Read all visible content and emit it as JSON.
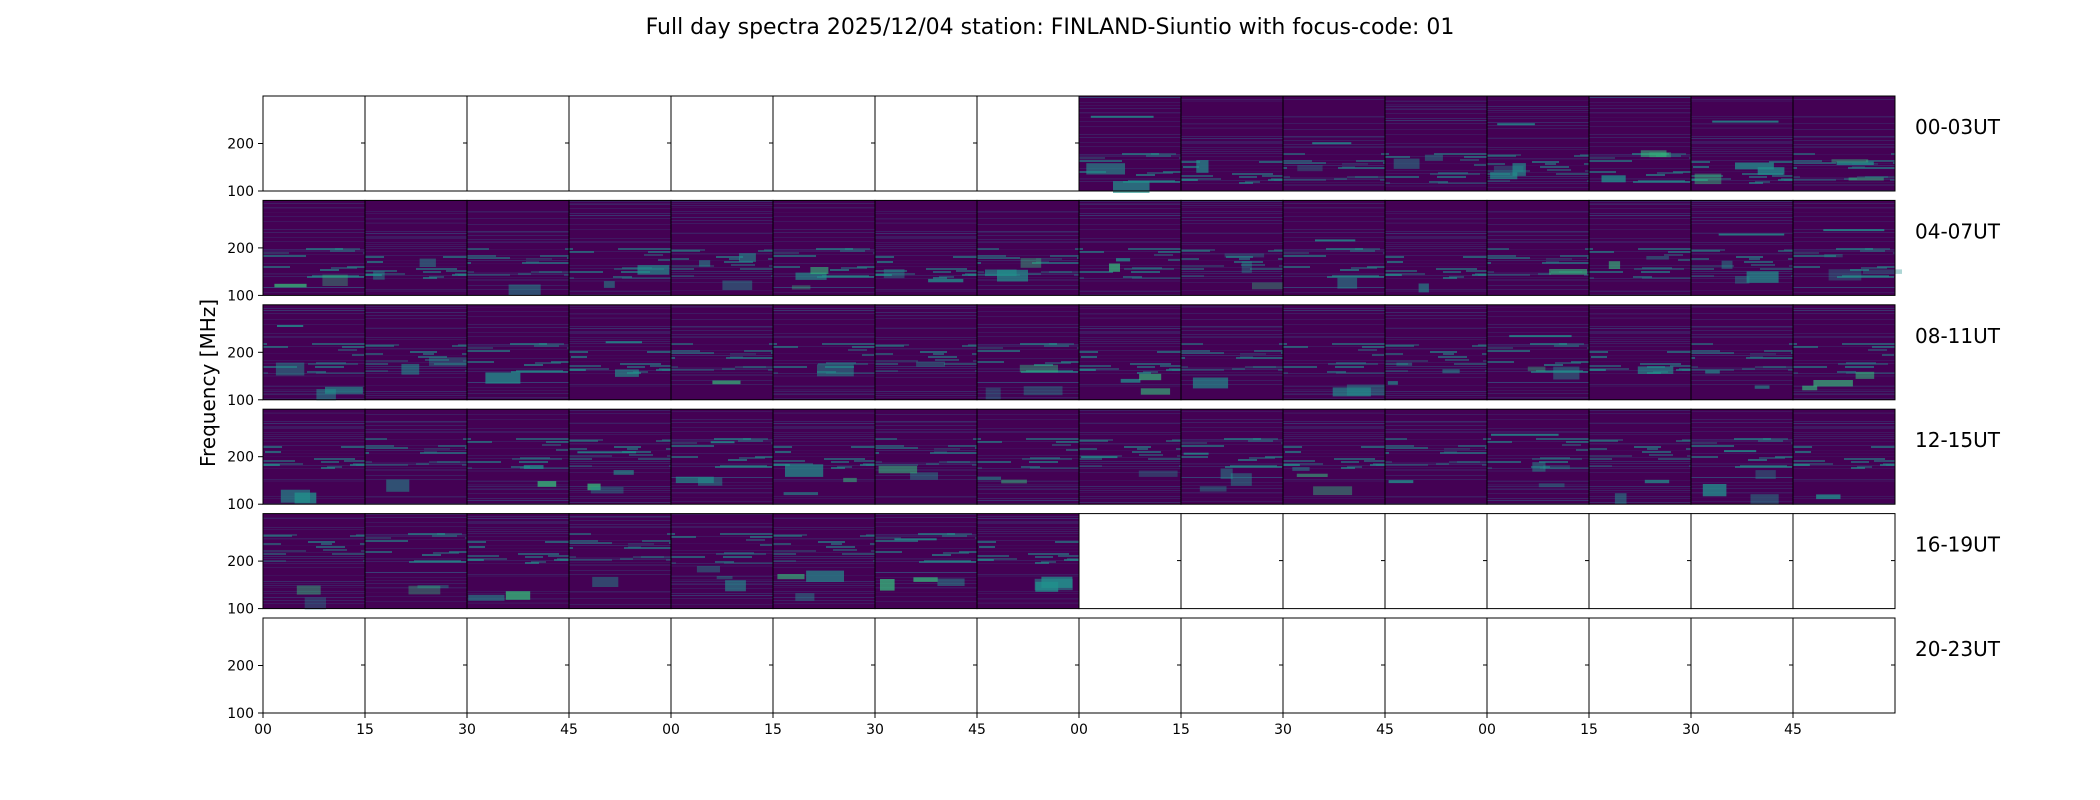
{
  "chart_data": {
    "type": "heatmap",
    "title": "Full day spectra 2025/12/04 station: FINLAND-Siuntio with focus-code: 01",
    "ylabel": "Frequency [MHz]",
    "xlabel": "",
    "y_ticks": [
      "100",
      "200"
    ],
    "x_ticks": [
      "00",
      "15",
      "30",
      "45",
      "00",
      "15",
      "30",
      "45",
      "00",
      "15",
      "30",
      "45",
      "00",
      "15",
      "30",
      "45"
    ],
    "row_labels": [
      "00-03UT",
      "04-07UT",
      "08-11UT",
      "12-15UT",
      "16-19UT",
      "20-23UT"
    ],
    "ylim": [
      100,
      300
    ],
    "colormap": "viridis",
    "colors": {
      "background_low": "#440154",
      "mid": "#31688e",
      "high": "#21918c",
      "peak": "#35b779",
      "empty": "#ffffff",
      "frame": "#000000"
    },
    "panels_per_row": 16,
    "panel_minutes": 15,
    "data_coverage": [
      [
        0,
        0,
        0,
        0,
        0,
        0,
        0,
        0,
        1,
        1,
        1,
        1,
        1,
        1,
        1,
        1
      ],
      [
        1,
        1,
        1,
        1,
        1,
        1,
        1,
        1,
        1,
        1,
        1,
        1,
        1,
        1,
        1,
        1
      ],
      [
        1,
        1,
        1,
        1,
        1,
        1,
        1,
        1,
        1,
        1,
        1,
        1,
        1,
        1,
        1,
        1
      ],
      [
        1,
        1,
        1,
        1,
        1,
        1,
        1,
        1,
        1,
        1,
        1,
        1,
        1,
        1,
        1,
        1
      ],
      [
        1,
        1,
        1,
        1,
        1,
        1,
        1,
        1,
        0,
        0,
        0,
        0,
        0,
        0,
        0,
        0
      ],
      [
        0,
        0,
        0,
        0,
        0,
        0,
        0,
        0,
        0,
        0,
        0,
        0,
        0,
        0,
        0,
        0
      ]
    ]
  }
}
